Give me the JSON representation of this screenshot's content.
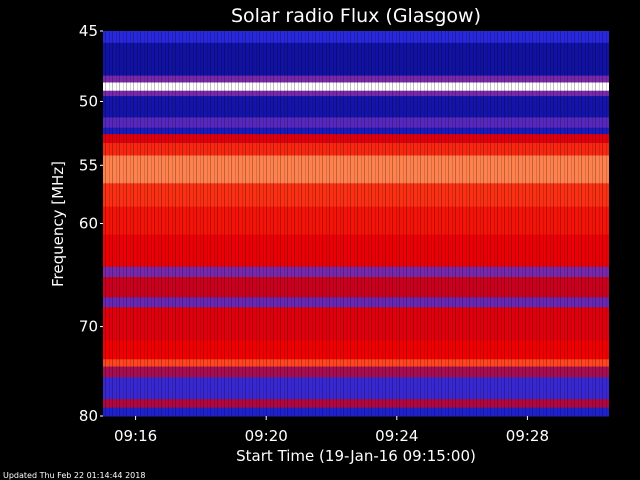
{
  "chart_data": {
    "type": "heatmap",
    "title": "Solar radio Flux (Glasgow)",
    "xlabel": "Start Time (19-Jan-16 09:15:00)",
    "ylabel": "Frequency [MHz]",
    "x_range": [
      "09:15:00",
      "09:30:30"
    ],
    "y_range": [
      45,
      80
    ],
    "y_ticks": [
      45,
      50,
      55,
      60,
      70,
      80
    ],
    "x_ticks": [
      "09:16",
      "09:20",
      "09:24",
      "09:28"
    ],
    "y_scale": "log",
    "bands": [
      {
        "from": 45.0,
        "to": 45.8,
        "level": 0.12
      },
      {
        "from": 45.8,
        "to": 48.1,
        "level": 0.05
      },
      {
        "from": 48.1,
        "to": 48.6,
        "level": 0.22
      },
      {
        "from": 48.6,
        "to": 49.2,
        "level": 1.0
      },
      {
        "from": 49.2,
        "to": 49.6,
        "level": 0.22
      },
      {
        "from": 49.6,
        "to": 51.2,
        "level": 0.06
      },
      {
        "from": 51.2,
        "to": 52.0,
        "level": 0.18
      },
      {
        "from": 52.0,
        "to": 52.5,
        "level": 0.08
      },
      {
        "from": 52.5,
        "to": 53.2,
        "level": 0.45
      },
      {
        "from": 53.2,
        "to": 54.2,
        "level": 0.6
      },
      {
        "from": 54.2,
        "to": 56.5,
        "level": 0.78
      },
      {
        "from": 56.5,
        "to": 58.5,
        "level": 0.62
      },
      {
        "from": 58.5,
        "to": 61.0,
        "level": 0.55
      },
      {
        "from": 61.0,
        "to": 64.0,
        "level": 0.48
      },
      {
        "from": 64.0,
        "to": 65.0,
        "level": 0.22
      },
      {
        "from": 65.0,
        "to": 67.0,
        "level": 0.38
      },
      {
        "from": 67.0,
        "to": 68.0,
        "level": 0.2
      },
      {
        "from": 68.0,
        "to": 71.5,
        "level": 0.45
      },
      {
        "from": 71.5,
        "to": 73.5,
        "level": 0.5
      },
      {
        "from": 73.5,
        "to": 74.3,
        "level": 0.68
      },
      {
        "from": 74.3,
        "to": 75.5,
        "level": 0.3
      },
      {
        "from": 75.5,
        "to": 78.0,
        "level": 0.14
      },
      {
        "from": 78.0,
        "to": 79.0,
        "level": 0.32
      },
      {
        "from": 79.0,
        "to": 80.0,
        "level": 0.1
      }
    ]
  },
  "footer": {
    "updated": "Updated Thu Feb 22 01:14:44 2018"
  }
}
